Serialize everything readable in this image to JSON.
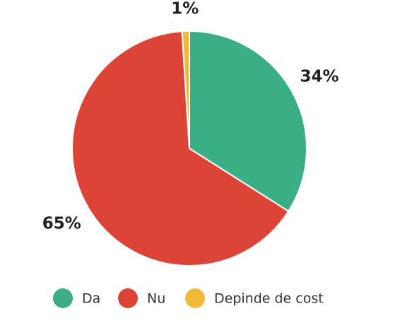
{
  "chart_data": {
    "type": "pie",
    "categories": [
      "Da",
      "Nu",
      "Depinde de cost"
    ],
    "values": [
      34,
      65,
      1
    ],
    "value_labels": [
      "34%",
      "65%",
      "1%"
    ],
    "colors": [
      "#3aae84",
      "#dc4437",
      "#f0b93a"
    ]
  }
}
